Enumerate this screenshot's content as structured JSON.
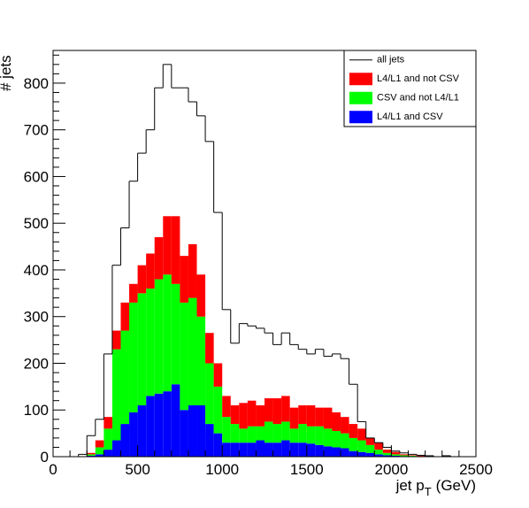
{
  "chart_data": {
    "type": "histogram",
    "xlabel": "jet p",
    "xlabel_sub": "T",
    "xlabel_unit": "(GeV)",
    "ylabel": "# jets",
    "bins": [
      0,
      50,
      100,
      150,
      200,
      250,
      300,
      350,
      400,
      450,
      500,
      550,
      600,
      650,
      700,
      750,
      800,
      850,
      900,
      950,
      1000,
      1050,
      1100,
      1150,
      1200,
      1250,
      1300,
      1350,
      1400,
      1450,
      1500,
      1550,
      1600,
      1650,
      1700,
      1750,
      1800,
      1850,
      1900,
      1950,
      2000,
      2050,
      2100,
      2150,
      2200,
      2250,
      2300,
      2350,
      2400,
      2450,
      2500
    ],
    "series": [
      {
        "name": "all jets",
        "style": "step",
        "color": "#000000",
        "values": [
          0,
          0,
          0,
          5,
          45,
          80,
          220,
          410,
          490,
          590,
          650,
          700,
          790,
          840,
          790,
          790,
          760,
          730,
          675,
          523,
          315,
          243,
          285,
          280,
          275,
          265,
          240,
          265,
          240,
          230,
          220,
          230,
          215,
          220,
          210,
          155,
          75,
          40,
          30,
          20,
          12,
          8,
          5,
          3,
          2,
          0,
          2,
          0,
          0,
          0
        ]
      },
      {
        "name": "L4/L1 and not CSV",
        "style": "stacked",
        "color": "#ff0000",
        "values": [
          0,
          0,
          0,
          0,
          3,
          15,
          25,
          40,
          60,
          40,
          60,
          75,
          90,
          125,
          145,
          100,
          115,
          90,
          65,
          50,
          45,
          40,
          55,
          55,
          45,
          50,
          55,
          55,
          45,
          40,
          45,
          40,
          45,
          40,
          35,
          30,
          25,
          15,
          15,
          7,
          5,
          2,
          1,
          1,
          1,
          0,
          0,
          0,
          0,
          0
        ]
      },
      {
        "name": "CSV and not L4/L1",
        "style": "stacked",
        "color": "#00ff00",
        "values": [
          0,
          0,
          0,
          0,
          3,
          15,
          45,
          195,
          200,
          235,
          240,
          230,
          245,
          250,
          215,
          230,
          230,
          190,
          130,
          100,
          55,
          40,
          30,
          35,
          30,
          45,
          40,
          40,
          30,
          40,
          37,
          40,
          38,
          35,
          32,
          28,
          25,
          17,
          10,
          5,
          3,
          2,
          1,
          1,
          0,
          0,
          0,
          0,
          0,
          0
        ]
      },
      {
        "name": "L4/L1 and CSV",
        "style": "stacked",
        "color": "#0000ff",
        "values": [
          0,
          0,
          0,
          0,
          2,
          5,
          15,
          35,
          70,
          95,
          110,
          130,
          135,
          140,
          155,
          100,
          110,
          110,
          70,
          50,
          30,
          30,
          30,
          30,
          35,
          30,
          30,
          35,
          30,
          30,
          28,
          25,
          22,
          20,
          18,
          12,
          10,
          8,
          5,
          3,
          2,
          1,
          1,
          0,
          0,
          0,
          0,
          0,
          0,
          0
        ]
      }
    ],
    "xlim": [
      0,
      2500
    ],
    "xticks": [
      0,
      500,
      1000,
      1500,
      2000,
      2500
    ],
    "ylim": [
      0,
      870
    ],
    "yticks": [
      0,
      100,
      200,
      300,
      400,
      500,
      600,
      700,
      800
    ],
    "legend": "upper right"
  }
}
